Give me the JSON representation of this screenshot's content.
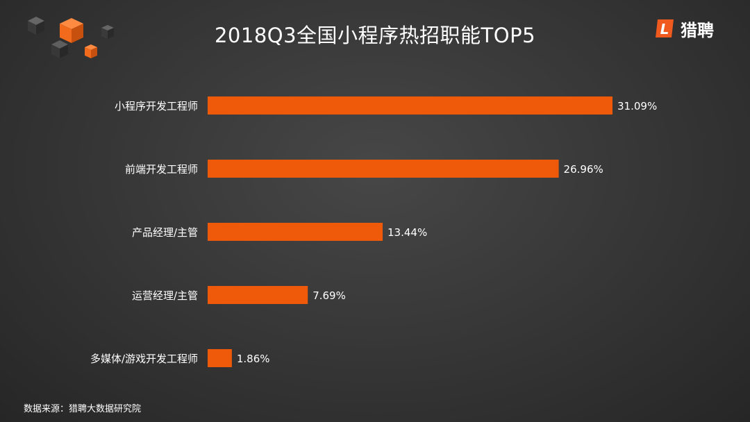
{
  "title": "2018Q3全国小程序热招职能TOP5",
  "logo": {
    "text": "猎聘",
    "mark_letter": "L",
    "color": "#f05a1e"
  },
  "source": "数据来源：猎聘大数据研究院",
  "colors": {
    "bar": "#ee5a0a",
    "text": "#ffffff",
    "cube_orange": "#f26a1b",
    "cube_gray": "#4a4a4a"
  },
  "chart_data": {
    "type": "bar",
    "orientation": "horizontal",
    "title": "2018Q3全国小程序热招职能TOP5",
    "categories": [
      "小程序开发工程师",
      "前端开发工程师",
      "产品经理/主管",
      "运营经理/主管",
      "多媒体/游戏开发工程师"
    ],
    "values": [
      31.09,
      26.96,
      13.44,
      7.69,
      1.86
    ],
    "value_labels": [
      "31.09%",
      "26.96%",
      "13.44%",
      "7.69%",
      "1.86%"
    ],
    "unit": "%",
    "xlim": [
      0,
      31.09
    ],
    "grid": false,
    "legend": "none"
  }
}
